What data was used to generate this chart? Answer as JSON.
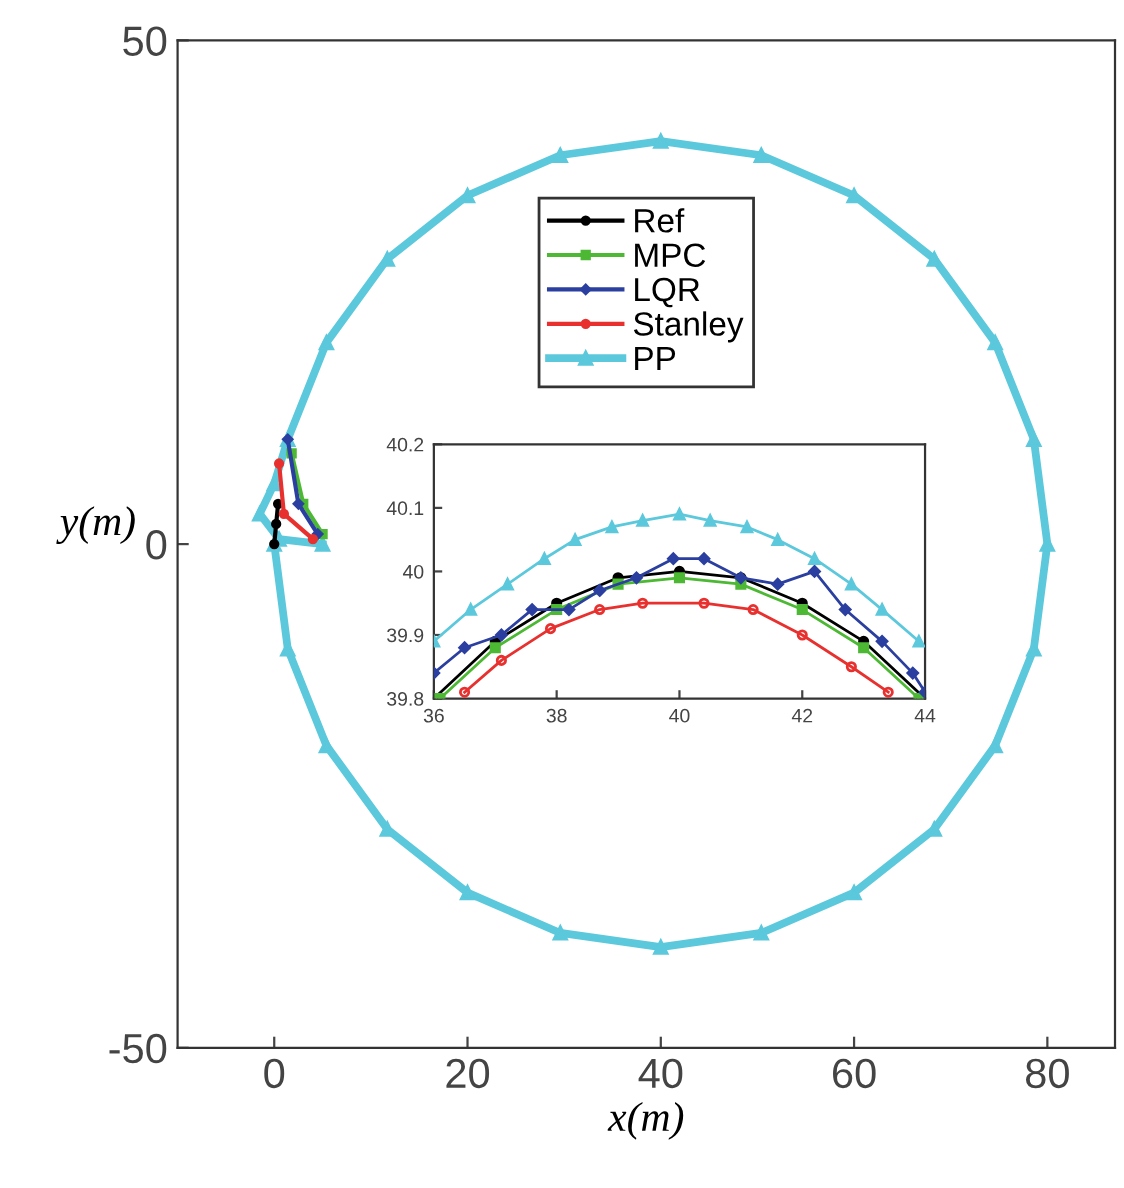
{
  "chart_data": [
    {
      "type": "line",
      "xlabel": "x(m)",
      "ylabel": "y(m)",
      "xlim": [
        -10,
        87
      ],
      "ylim": [
        -50,
        50
      ],
      "xticks": [
        0,
        20,
        40,
        60,
        80
      ],
      "yticks": [
        -50,
        0,
        50
      ],
      "grid": false,
      "legend": "top",
      "series": [
        {
          "name": "Ref",
          "color": "#000000",
          "marker": "circle",
          "x": [
            0,
            0.2,
            0.4
          ],
          "values": [
            0,
            2,
            4
          ]
        },
        {
          "name": "MPC",
          "color": "#4cb833",
          "marker": "square",
          "x": [
            5,
            3,
            1.8
          ],
          "values": [
            1,
            4,
            9
          ]
        },
        {
          "name": "LQR",
          "color": "#2b3fa0",
          "marker": "diamond",
          "x": [
            4.5,
            2.5,
            1.4
          ],
          "values": [
            1,
            4,
            10.4
          ]
        },
        {
          "name": "Stanley",
          "color": "#e8312f",
          "marker": "circle",
          "x": [
            4,
            1,
            0.5
          ],
          "values": [
            0.5,
            3,
            8
          ]
        },
        {
          "name": "PP",
          "color": "#5bc8dc",
          "marker": "triangle",
          "x": [
            5,
            0.5,
            -1.5,
            0,
            1.4,
            5.4,
            11.7,
            20,
            29.6,
            40,
            50.4,
            60,
            68.3,
            74.6,
            78.6,
            80,
            78.6,
            74.6,
            68.3,
            60,
            50.4,
            40,
            29.6,
            20,
            11.7,
            5.4,
            1.4,
            0
          ],
          "values": [
            0,
            0.5,
            3,
            6,
            10.4,
            20,
            28.3,
            34.6,
            38.6,
            40,
            38.6,
            34.6,
            28.3,
            20,
            10.4,
            0,
            -10.4,
            -20,
            -28.3,
            -34.6,
            -38.6,
            -40,
            -38.6,
            -34.6,
            -28.3,
            -20,
            -10.4,
            0
          ]
        }
      ]
    },
    {
      "type": "line",
      "xlim": [
        36,
        44
      ],
      "ylim": [
        39.8,
        40.2
      ],
      "xticks": [
        36,
        38,
        40,
        42,
        44
      ],
      "yticks": [
        39.8,
        39.9,
        40,
        40.1,
        40.2
      ],
      "grid": false,
      "legend": false,
      "series": [
        {
          "color": "#000000",
          "marker": "circle",
          "x": [
            36,
            37,
            38,
            39,
            40,
            41,
            42,
            43,
            44
          ],
          "values": [
            39.8,
            39.89,
            39.95,
            39.99,
            40.0,
            39.99,
            39.95,
            39.89,
            39.8
          ]
        },
        {
          "color": "#4cb833",
          "marker": "square",
          "x": [
            36.1,
            37,
            38,
            39,
            40,
            41,
            42,
            43,
            43.9
          ],
          "values": [
            39.8,
            39.88,
            39.94,
            39.98,
            39.99,
            39.98,
            39.94,
            39.88,
            39.8
          ]
        },
        {
          "color": "#2b3fa0",
          "marker": "diamond",
          "x": [
            36,
            36.5,
            37.1,
            37.6,
            38.2,
            38.7,
            39.3,
            39.9,
            40.4,
            41.0,
            41.6,
            42.2,
            42.7,
            43.3,
            43.8,
            44
          ],
          "values": [
            39.84,
            39.88,
            39.9,
            39.94,
            39.94,
            39.97,
            39.99,
            40.02,
            40.02,
            39.99,
            39.98,
            40.0,
            39.94,
            39.89,
            39.84,
            39.81
          ]
        },
        {
          "color": "#e8312f",
          "marker": "circle",
          "x": [
            36.5,
            37.1,
            37.9,
            38.7,
            39.4,
            40.4,
            41.2,
            42.0,
            42.8,
            43.4
          ],
          "values": [
            39.81,
            39.86,
            39.91,
            39.94,
            39.95,
            39.95,
            39.94,
            39.9,
            39.85,
            39.81
          ]
        },
        {
          "color": "#5bc8dc",
          "marker": "triangle",
          "x": [
            36,
            36.6,
            37.2,
            37.8,
            38.3,
            38.9,
            39.4,
            40,
            40.5,
            41.1,
            41.6,
            42.2,
            42.8,
            43.3,
            43.9
          ],
          "values": [
            39.89,
            39.94,
            39.98,
            40.02,
            40.05,
            40.07,
            40.08,
            40.09,
            40.08,
            40.07,
            40.05,
            40.02,
            39.98,
            39.94,
            39.89
          ]
        }
      ]
    }
  ]
}
